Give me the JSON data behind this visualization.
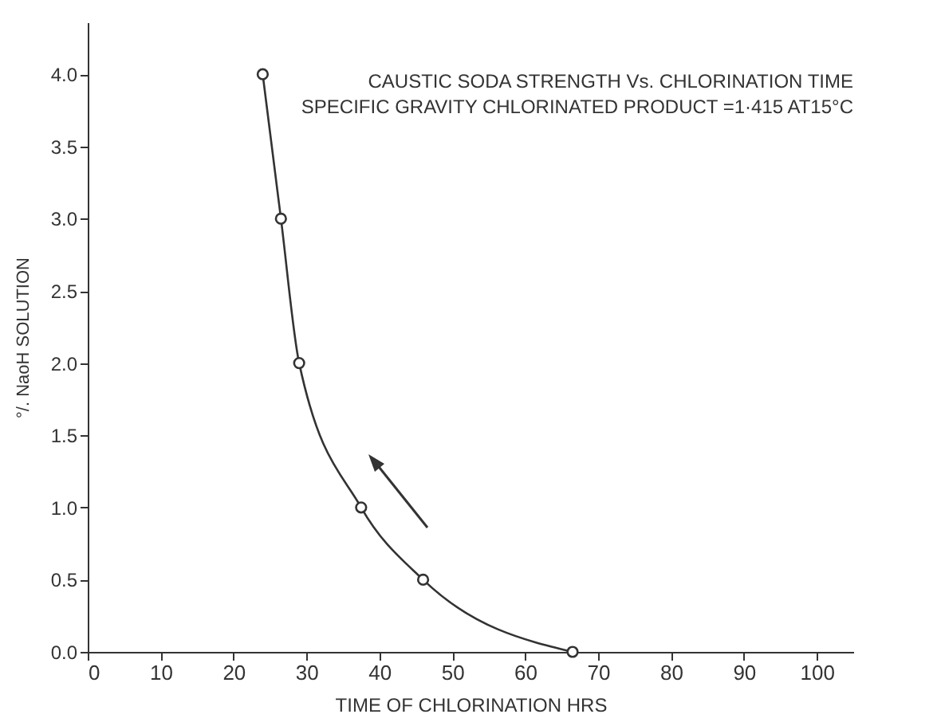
{
  "chart_data": {
    "type": "line",
    "title": "CAUSTIC SODA STRENGTH Vs. CHLORINATION TIME",
    "subtitle": "SPECIFIC GRAVITY CHLORINATED PRODUCT =1·415 AT15°C",
    "xlabel": "TIME OF CHLORINATION HRS",
    "ylabel": "°/. NaoH SOLUTION",
    "x": [
      24,
      26.5,
      29,
      37.5,
      46,
      66.5
    ],
    "series": [
      {
        "color": "#333333",
        "values": [
          4.0,
          3.0,
          2.0,
          1.0,
          0.5,
          0.0
        ]
      }
    ],
    "marker": "circle",
    "line_style": "solid",
    "grid": false,
    "xlim": [
      0,
      105
    ],
    "xticks": [
      0,
      10,
      20,
      30,
      40,
      50,
      60,
      70,
      80,
      90,
      100
    ],
    "ylim": [
      0,
      4.36
    ],
    "yticks": [
      {
        "value": 0,
        "label": "0.0"
      },
      0.5,
      {
        "value": 1,
        "label": "1.0"
      },
      1.5,
      {
        "value": 2,
        "label": "2.0"
      },
      2.5,
      {
        "value": 3,
        "label": "3.0"
      },
      3.5,
      {
        "value": 4,
        "label": "4.0"
      }
    ]
  }
}
